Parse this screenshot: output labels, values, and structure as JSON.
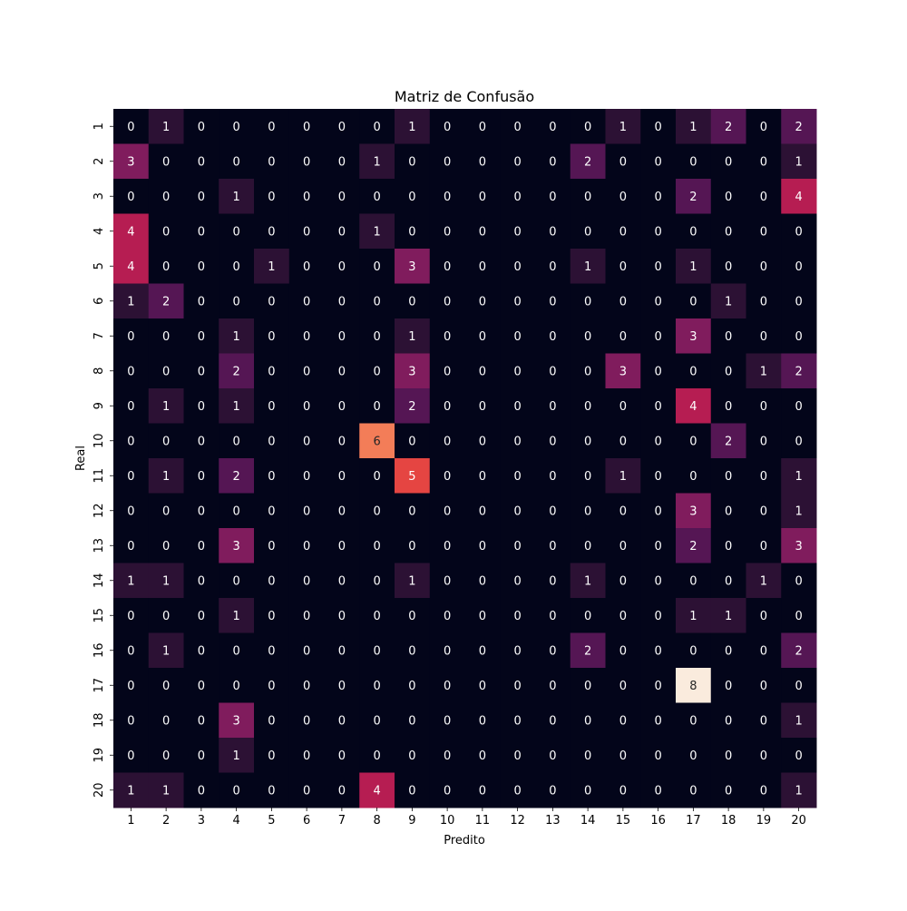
{
  "chart_data": {
    "type": "heatmap",
    "title": "Matriz de Confusão",
    "xlabel": "Predito",
    "ylabel": "Real",
    "x_categories": [
      "1",
      "2",
      "3",
      "4",
      "5",
      "6",
      "7",
      "8",
      "9",
      "10",
      "11",
      "12",
      "13",
      "14",
      "15",
      "16",
      "17",
      "18",
      "19",
      "20"
    ],
    "y_categories": [
      "1",
      "2",
      "3",
      "4",
      "5",
      "6",
      "7",
      "8",
      "9",
      "10",
      "11",
      "12",
      "13",
      "14",
      "15",
      "16",
      "17",
      "18",
      "19",
      "20"
    ],
    "values": [
      [
        0,
        1,
        0,
        0,
        0,
        0,
        0,
        0,
        1,
        0,
        0,
        0,
        0,
        0,
        1,
        0,
        1,
        2,
        0,
        2
      ],
      [
        3,
        0,
        0,
        0,
        0,
        0,
        0,
        1,
        0,
        0,
        0,
        0,
        0,
        2,
        0,
        0,
        0,
        0,
        0,
        1
      ],
      [
        0,
        0,
        0,
        1,
        0,
        0,
        0,
        0,
        0,
        0,
        0,
        0,
        0,
        0,
        0,
        0,
        2,
        0,
        0,
        4
      ],
      [
        4,
        0,
        0,
        0,
        0,
        0,
        0,
        1,
        0,
        0,
        0,
        0,
        0,
        0,
        0,
        0,
        0,
        0,
        0,
        0
      ],
      [
        4,
        0,
        0,
        0,
        1,
        0,
        0,
        0,
        3,
        0,
        0,
        0,
        0,
        1,
        0,
        0,
        1,
        0,
        0,
        0
      ],
      [
        1,
        2,
        0,
        0,
        0,
        0,
        0,
        0,
        0,
        0,
        0,
        0,
        0,
        0,
        0,
        0,
        0,
        1,
        0,
        0
      ],
      [
        0,
        0,
        0,
        1,
        0,
        0,
        0,
        0,
        1,
        0,
        0,
        0,
        0,
        0,
        0,
        0,
        3,
        0,
        0,
        0
      ],
      [
        0,
        0,
        0,
        2,
        0,
        0,
        0,
        0,
        3,
        0,
        0,
        0,
        0,
        0,
        3,
        0,
        0,
        0,
        1,
        2
      ],
      [
        0,
        1,
        0,
        1,
        0,
        0,
        0,
        0,
        2,
        0,
        0,
        0,
        0,
        0,
        0,
        0,
        4,
        0,
        0,
        0
      ],
      [
        0,
        0,
        0,
        0,
        0,
        0,
        0,
        6,
        0,
        0,
        0,
        0,
        0,
        0,
        0,
        0,
        0,
        2,
        0,
        0
      ],
      [
        0,
        1,
        0,
        2,
        0,
        0,
        0,
        0,
        5,
        0,
        0,
        0,
        0,
        0,
        1,
        0,
        0,
        0,
        0,
        1
      ],
      [
        0,
        0,
        0,
        0,
        0,
        0,
        0,
        0,
        0,
        0,
        0,
        0,
        0,
        0,
        0,
        0,
        3,
        0,
        0,
        1
      ],
      [
        0,
        0,
        0,
        3,
        0,
        0,
        0,
        0,
        0,
        0,
        0,
        0,
        0,
        0,
        0,
        0,
        2,
        0,
        0,
        3
      ],
      [
        1,
        1,
        0,
        0,
        0,
        0,
        0,
        0,
        1,
        0,
        0,
        0,
        0,
        1,
        0,
        0,
        0,
        0,
        1,
        0
      ],
      [
        0,
        0,
        0,
        1,
        0,
        0,
        0,
        0,
        0,
        0,
        0,
        0,
        0,
        0,
        0,
        0,
        1,
        1,
        0,
        0
      ],
      [
        0,
        1,
        0,
        0,
        0,
        0,
        0,
        0,
        0,
        0,
        0,
        0,
        0,
        2,
        0,
        0,
        0,
        0,
        0,
        2
      ],
      [
        0,
        0,
        0,
        0,
        0,
        0,
        0,
        0,
        0,
        0,
        0,
        0,
        0,
        0,
        0,
        0,
        8,
        0,
        0,
        0
      ],
      [
        0,
        0,
        0,
        3,
        0,
        0,
        0,
        0,
        0,
        0,
        0,
        0,
        0,
        0,
        0,
        0,
        0,
        0,
        0,
        1
      ],
      [
        0,
        0,
        0,
        1,
        0,
        0,
        0,
        0,
        0,
        0,
        0,
        0,
        0,
        0,
        0,
        0,
        0,
        0,
        0,
        0
      ],
      [
        1,
        1,
        0,
        0,
        0,
        0,
        0,
        4,
        0,
        0,
        0,
        0,
        0,
        0,
        0,
        0,
        0,
        0,
        0,
        1
      ]
    ],
    "vmin": 0,
    "vmax": 8,
    "colormap": "rocket",
    "colorbar": false
  }
}
